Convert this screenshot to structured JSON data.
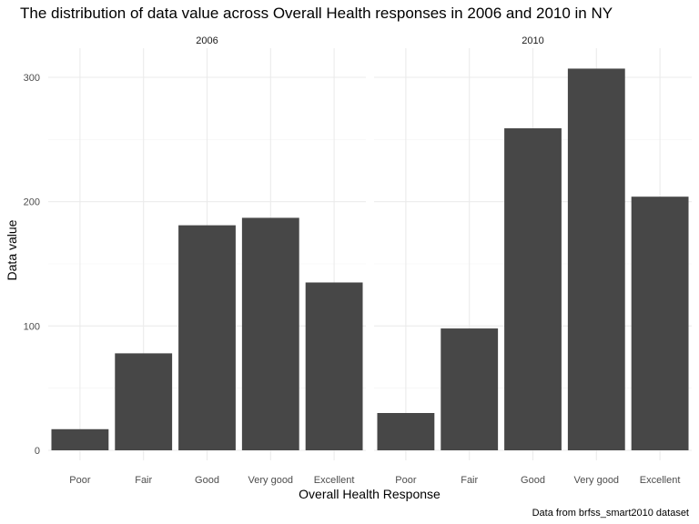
{
  "chart_data": {
    "type": "bar",
    "title": "The distribution of data value across Overall Health responses in 2006 and 2010 in NY",
    "xlabel": "Overall Health Response",
    "ylabel": "Data value",
    "caption": "Data from brfss_smart2010 dataset",
    "categories": [
      "Poor",
      "Fair",
      "Good",
      "Very good",
      "Excellent"
    ],
    "ylim": [
      0,
      320
    ],
    "yticks": [
      0,
      100,
      200,
      300
    ],
    "grid": true,
    "bar_color": "#474747",
    "facets": [
      {
        "label": "2006",
        "values": [
          17,
          78,
          181,
          187,
          135
        ]
      },
      {
        "label": "2010",
        "values": [
          30,
          98,
          259,
          307,
          204
        ]
      }
    ]
  }
}
